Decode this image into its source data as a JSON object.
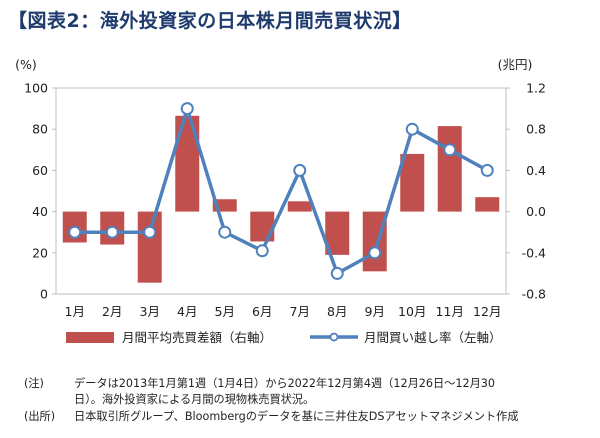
{
  "title": "【図表2：海外投資家の日本株月間売買状況】",
  "chart_data": {
    "type": "bar+line",
    "categories": [
      "1月",
      "2月",
      "3月",
      "4月",
      "5月",
      "6月",
      "7月",
      "8月",
      "9月",
      "10月",
      "11月",
      "12月"
    ],
    "left_axis": {
      "unit": "(%)",
      "min": 0,
      "max": 100,
      "ticks": [
        "0",
        "20",
        "40",
        "60",
        "80",
        "100"
      ]
    },
    "right_axis": {
      "unit": "(兆円)",
      "min": -0.8,
      "max": 1.2,
      "ticks": [
        "-0.8",
        "-0.4",
        "0.0",
        "0.4",
        "0.8",
        "1.2"
      ]
    },
    "series": [
      {
        "name": "月間平均売買差額（右軸）",
        "type": "bar",
        "axis": "right",
        "color": "#c0504d",
        "values": [
          -0.3,
          -0.32,
          -0.69,
          0.93,
          0.12,
          -0.29,
          0.1,
          -0.42,
          -0.58,
          0.56,
          0.83,
          0.14
        ]
      },
      {
        "name": "月間買い越し率（左軸）",
        "type": "line",
        "axis": "left",
        "color": "#4f81bd",
        "values": [
          30,
          30,
          30,
          90,
          30,
          21,
          60,
          10,
          20,
          80,
          70,
          60
        ]
      }
    ]
  },
  "notes": {
    "note_label": "(注)",
    "note_line1": "データは2013年1月第1週（1月4日）から2022年12月第4週（12月26日～12月30",
    "note_line2": "日）。海外投資家による月間の現物株売買状況。",
    "source_label": "(出所)",
    "source_text": "日本取引所グループ、Bloombergのデータを基に三井住友DSアセットマネジメント作成"
  }
}
